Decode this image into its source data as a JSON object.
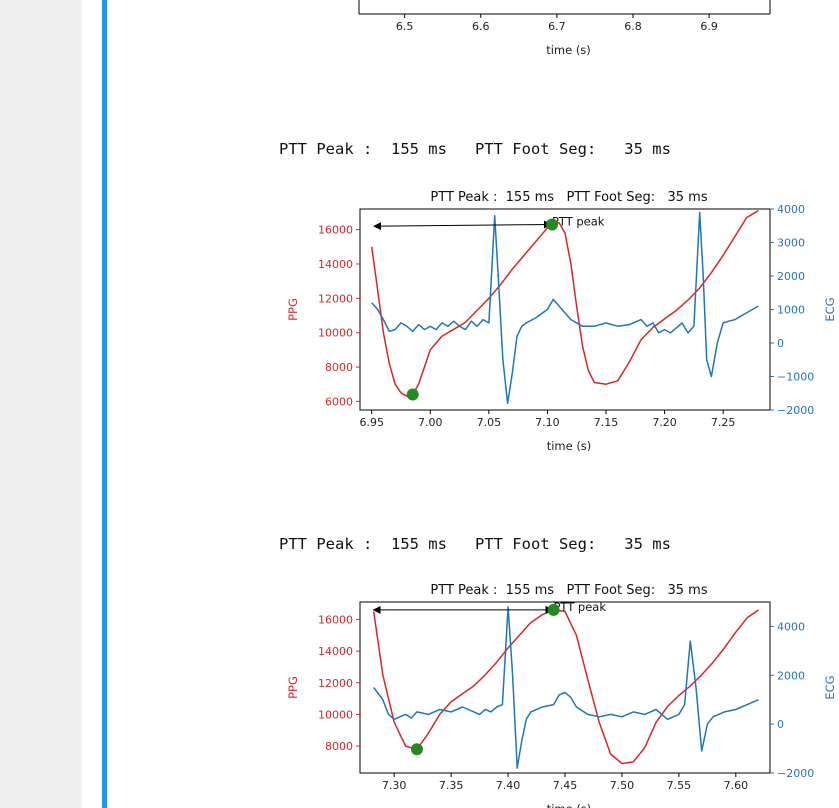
{
  "outputs": [
    "PTT Peak :  155 ms   PTT Foot Seg:   35 ms",
    "PTT Peak :  155 ms   PTT Foot Seg:   35 ms"
  ],
  "colors": {
    "ppg": "#d62728",
    "ecg": "#1f77b4",
    "marker": "#228b22",
    "cell_bar": "#2196f3"
  },
  "chart_data": [
    {
      "type": "line",
      "xlabel": "time (s)",
      "xticks": [
        6.5,
        6.6,
        6.7,
        6.8,
        6.9
      ],
      "xlim": [
        6.44,
        6.98
      ],
      "partial": true
    },
    {
      "type": "line",
      "title": "PTT Peak :  155 ms   PTT Foot Seg:   35 ms",
      "xlabel": "time (s)",
      "ylabel": "PPG",
      "y2label": "ECG",
      "xlim": [
        6.94,
        7.29
      ],
      "ylim": [
        5500,
        17200
      ],
      "y2lim": [
        -2000,
        4000
      ],
      "xticks": [
        6.95,
        7.0,
        7.05,
        7.1,
        7.15,
        7.2,
        7.25
      ],
      "xtick_labels": [
        "6.95",
        "7.00",
        "7.05",
        "7.10",
        "7.15",
        "7.20",
        "7.25"
      ],
      "yticks": [
        6000,
        8000,
        10000,
        12000,
        14000,
        16000
      ],
      "y2ticks": [
        -2000,
        -1000,
        0,
        1000,
        2000,
        3000,
        4000
      ],
      "y2tick_labels": [
        "−2000",
        "−1000",
        "0",
        "1000",
        "2000",
        "3000",
        "4000"
      ],
      "annotation": {
        "text": "PTT peak",
        "from": [
          6.952,
          16200
        ],
        "to": [
          7.103,
          16300
        ]
      },
      "markers": [
        {
          "x": 6.985,
          "y": 6400
        },
        {
          "x": 7.104,
          "y": 16300
        }
      ],
      "series": [
        {
          "name": "PPG",
          "axis": "left",
          "x": [
            6.95,
            6.955,
            6.96,
            6.965,
            6.97,
            6.975,
            6.98,
            6.985,
            6.99,
            6.995,
            7.0,
            7.01,
            7.02,
            7.03,
            7.04,
            7.05,
            7.06,
            7.07,
            7.08,
            7.09,
            7.1,
            7.105,
            7.11,
            7.115,
            7.12,
            7.125,
            7.13,
            7.135,
            7.14,
            7.15,
            7.16,
            7.17,
            7.18,
            7.19,
            7.2,
            7.21,
            7.22,
            7.23,
            7.24,
            7.25,
            7.26,
            7.27,
            7.28
          ],
          "y": [
            15000,
            12500,
            10000,
            8200,
            7000,
            6500,
            6300,
            6400,
            7000,
            8000,
            9000,
            9800,
            10200,
            10600,
            11300,
            12000,
            12800,
            13700,
            14500,
            15300,
            16100,
            16400,
            16400,
            15800,
            14000,
            11500,
            9200,
            7800,
            7100,
            7000,
            7200,
            8300,
            9600,
            10300,
            10800,
            11300,
            11900,
            12600,
            13500,
            14500,
            15600,
            16700,
            17100
          ]
        },
        {
          "name": "ECG",
          "axis": "right",
          "x": [
            6.95,
            6.955,
            6.96,
            6.965,
            6.97,
            6.975,
            6.98,
            6.985,
            6.99,
            6.995,
            7.0,
            7.005,
            7.01,
            7.015,
            7.02,
            7.025,
            7.03,
            7.035,
            7.04,
            7.045,
            7.05,
            7.055,
            7.058,
            7.062,
            7.066,
            7.07,
            7.074,
            7.078,
            7.082,
            7.09,
            7.1,
            7.105,
            7.11,
            7.115,
            7.12,
            7.125,
            7.13,
            7.14,
            7.15,
            7.16,
            7.17,
            7.18,
            7.185,
            7.19,
            7.195,
            7.2,
            7.205,
            7.21,
            7.215,
            7.22,
            7.225,
            7.23,
            7.233,
            7.236,
            7.24,
            7.245,
            7.25,
            7.255,
            7.26,
            7.265,
            7.27,
            7.275,
            7.28
          ],
          "y": [
            1200,
            1000,
            700,
            350,
            400,
            600,
            500,
            350,
            550,
            400,
            500,
            400,
            600,
            500,
            650,
            500,
            400,
            650,
            500,
            700,
            600,
            3800,
            2000,
            -500,
            -1800,
            -900,
            200,
            500,
            600,
            750,
            1000,
            1300,
            1100,
            900,
            700,
            600,
            500,
            500,
            600,
            500,
            550,
            700,
            500,
            600,
            300,
            400,
            300,
            450,
            600,
            300,
            500,
            3900,
            2000,
            -500,
            -1000,
            0,
            600,
            650,
            700,
            800,
            900,
            1000,
            1100
          ]
        }
      ]
    },
    {
      "type": "line",
      "title": "PTT Peak :  155 ms   PTT Foot Seg:   35 ms",
      "xlabel": "time (s)",
      "ylabel": "PPG",
      "y2label": "ECG",
      "xlim": [
        7.27,
        7.63
      ],
      "ylim": [
        6300,
        17100
      ],
      "y2lim": [
        -2000,
        5000
      ],
      "xticks": [
        7.3,
        7.35,
        7.4,
        7.45,
        7.5,
        7.55,
        7.6
      ],
      "xtick_labels": [
        "7.30",
        "7.35",
        "7.40",
        "7.45",
        "7.50",
        "7.55",
        "7.60"
      ],
      "yticks": [
        8000,
        10000,
        12000,
        14000,
        16000
      ],
      "y2ticks": [
        -2000,
        0,
        2000,
        4000
      ],
      "y2tick_labels": [
        "−2000",
        "0",
        "2000",
        "4000"
      ],
      "annotation": {
        "text": "PTT peak",
        "from": [
          7.282,
          16600
        ],
        "to": [
          7.439,
          16600
        ]
      },
      "markers": [
        {
          "x": 7.32,
          "y": 7800
        },
        {
          "x": 7.44,
          "y": 16600
        }
      ],
      "series": [
        {
          "name": "PPG",
          "axis": "left",
          "x": [
            7.282,
            7.29,
            7.3,
            7.31,
            7.32,
            7.33,
            7.34,
            7.35,
            7.36,
            7.37,
            7.38,
            7.39,
            7.4,
            7.41,
            7.42,
            7.43,
            7.44,
            7.45,
            7.46,
            7.47,
            7.48,
            7.49,
            7.5,
            7.51,
            7.52,
            7.53,
            7.54,
            7.55,
            7.56,
            7.57,
            7.58,
            7.59,
            7.6,
            7.61,
            7.62
          ],
          "y": [
            16500,
            12500,
            9500,
            8000,
            7800,
            8800,
            10000,
            10800,
            11300,
            11800,
            12500,
            13300,
            14200,
            15000,
            15800,
            16300,
            16600,
            16500,
            15000,
            12200,
            9500,
            7500,
            6900,
            7000,
            7900,
            9500,
            10500,
            11200,
            11800,
            12500,
            13300,
            14200,
            15200,
            16100,
            16600
          ]
        },
        {
          "name": "ECG",
          "axis": "right",
          "x": [
            7.282,
            7.29,
            7.295,
            7.3,
            7.305,
            7.31,
            7.315,
            7.32,
            7.33,
            7.34,
            7.35,
            7.36,
            7.365,
            7.37,
            7.375,
            7.38,
            7.385,
            7.39,
            7.395,
            7.4,
            7.404,
            7.408,
            7.412,
            7.416,
            7.42,
            7.425,
            7.43,
            7.44,
            7.445,
            7.45,
            7.455,
            7.46,
            7.47,
            7.48,
            7.49,
            7.5,
            7.51,
            7.52,
            7.53,
            7.54,
            7.55,
            7.555,
            7.56,
            7.565,
            7.57,
            7.575,
            7.58,
            7.59,
            7.6,
            7.61,
            7.62
          ],
          "y": [
            1500,
            1000,
            400,
            200,
            300,
            400,
            250,
            500,
            400,
            600,
            500,
            700,
            600,
            500,
            400,
            600,
            500,
            700,
            800,
            4800,
            2000,
            -1800,
            -700,
            200,
            500,
            600,
            700,
            800,
            1200,
            1300,
            1100,
            700,
            400,
            300,
            400,
            300,
            500,
            400,
            600,
            200,
            400,
            800,
            3400,
            1500,
            -1100,
            0,
            300,
            500,
            600,
            800,
            1000
          ]
        }
      ]
    }
  ]
}
